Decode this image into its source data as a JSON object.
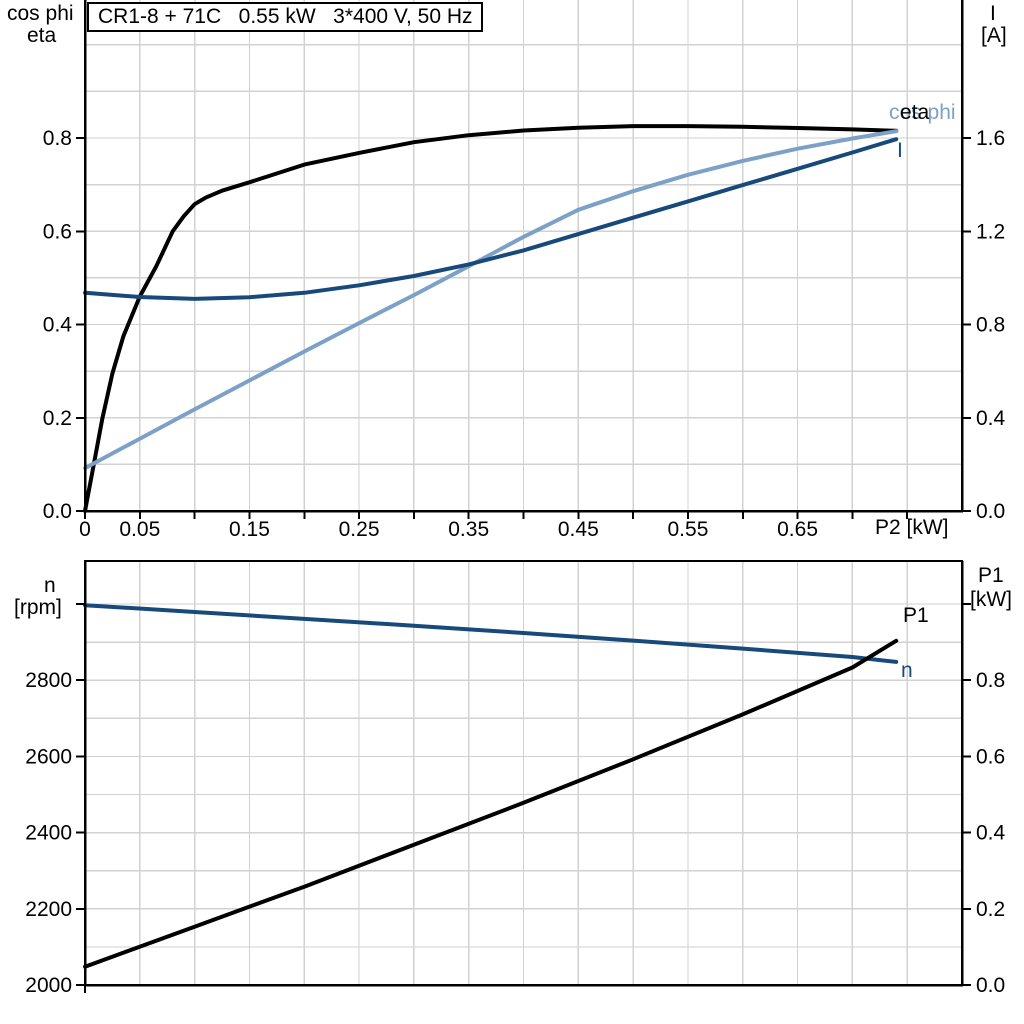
{
  "title_box": {
    "text": "CR1-8 + 71C   0.55 kW   3*400 V, 50 Hz"
  },
  "colors": {
    "black": "#000000",
    "dark_blue": "#17497b",
    "light_blue": "#7da0c7",
    "grid": "#d2d2d2",
    "background": "#ffffff"
  },
  "axis_titles": {
    "top_left_line1": "cos phi",
    "top_left_line2": "eta",
    "top_right_line1": "I",
    "top_right_line2": "[A]",
    "bottom_left_line1": "n",
    "bottom_left_line2": "[rpm]",
    "bottom_right_line1": "P1",
    "bottom_right_line2": "[kW]",
    "x_axis": "P2 [kW]"
  },
  "series_labels": {
    "eta": "eta",
    "cos_phi": "cos phi",
    "current": "I",
    "p1": "P1",
    "speed": "n"
  },
  "chart_data": [
    {
      "type": "line",
      "id": "motor-electrical",
      "title": "CR1-8 + 71C   0.55 kW   3*400 V, 50 Hz",
      "xlabel": "P2 [kW]",
      "ylabel_left": "cos phi / eta",
      "ylabel_right": "I [A]",
      "xlim": [
        0,
        0.8
      ],
      "ylim_left": [
        0,
        1.096
      ],
      "ylim_right": [
        0,
        2.192
      ],
      "grid_on": true,
      "vgrid": [
        0.05,
        0.1,
        0.15,
        0.2,
        0.25,
        0.3,
        0.35,
        0.4,
        0.45,
        0.5,
        0.55,
        0.6,
        0.65,
        0.7,
        0.75
      ],
      "hgrid_left": [
        0.1,
        0.2,
        0.3,
        0.4,
        0.5,
        0.6,
        0.7,
        0.8,
        0.9,
        1.0
      ],
      "x_ticks": [
        0,
        0.05,
        0.1,
        0.15,
        0.2,
        0.25,
        0.3,
        0.35,
        0.4,
        0.45,
        0.5,
        0.55,
        0.6,
        0.65,
        0.7,
        0.75
      ],
      "x_tick_labels": [
        {
          "v": 0,
          "t": "0"
        },
        {
          "v": 0.05,
          "t": "0.05"
        },
        {
          "v": 0.15,
          "t": "0.15"
        },
        {
          "v": 0.25,
          "t": "0.25"
        },
        {
          "v": 0.35,
          "t": "0.35"
        },
        {
          "v": 0.45,
          "t": "0.45"
        },
        {
          "v": 0.55,
          "t": "0.55"
        },
        {
          "v": 0.65,
          "t": "0.65"
        }
      ],
      "left_ticks": [
        {
          "v": 0,
          "t": "0.0"
        },
        {
          "v": 0.2,
          "t": "0.2"
        },
        {
          "v": 0.4,
          "t": "0.4"
        },
        {
          "v": 0.6,
          "t": "0.6"
        },
        {
          "v": 0.8,
          "t": "0.8"
        }
      ],
      "right_ticks": [
        {
          "v": 0,
          "t": "0.0"
        },
        {
          "v": 0.4,
          "t": "0.4"
        },
        {
          "v": 0.8,
          "t": "0.8"
        },
        {
          "v": 1.2,
          "t": "1.2"
        },
        {
          "v": 1.6,
          "t": "1.6"
        }
      ],
      "series": [
        {
          "name": "eta",
          "axis": "left",
          "color": "black",
          "points": [
            [
              0,
              0
            ],
            [
              0.008,
              0.1
            ],
            [
              0.016,
              0.2
            ],
            [
              0.025,
              0.295
            ],
            [
              0.035,
              0.375
            ],
            [
              0.05,
              0.46
            ],
            [
              0.065,
              0.525
            ],
            [
              0.08,
              0.6
            ],
            [
              0.09,
              0.632
            ],
            [
              0.1,
              0.658
            ],
            [
              0.11,
              0.672
            ],
            [
              0.125,
              0.687
            ],
            [
              0.15,
              0.705
            ],
            [
              0.2,
              0.743
            ],
            [
              0.25,
              0.768
            ],
            [
              0.3,
              0.791
            ],
            [
              0.35,
              0.806
            ],
            [
              0.4,
              0.816
            ],
            [
              0.45,
              0.822
            ],
            [
              0.5,
              0.8255
            ],
            [
              0.55,
              0.8255
            ],
            [
              0.6,
              0.824
            ],
            [
              0.65,
              0.8215
            ],
            [
              0.7,
              0.8185
            ],
            [
              0.74,
              0.8155
            ]
          ]
        },
        {
          "name": "cos phi",
          "axis": "left",
          "color": "light_blue",
          "points": [
            [
              0,
              0.092
            ],
            [
              0.05,
              0.155
            ],
            [
              0.1,
              0.218
            ],
            [
              0.15,
              0.28
            ],
            [
              0.2,
              0.342
            ],
            [
              0.25,
              0.403
            ],
            [
              0.3,
              0.463
            ],
            [
              0.35,
              0.525
            ],
            [
              0.4,
              0.588
            ],
            [
              0.45,
              0.646
            ],
            [
              0.5,
              0.686
            ],
            [
              0.55,
              0.721
            ],
            [
              0.6,
              0.751
            ],
            [
              0.65,
              0.777
            ],
            [
              0.7,
              0.799
            ],
            [
              0.74,
              0.8145
            ]
          ]
        },
        {
          "name": "I",
          "axis": "right",
          "color": "dark_blue",
          "points": [
            [
              0,
              0.936
            ],
            [
              0.05,
              0.918
            ],
            [
              0.1,
              0.91
            ],
            [
              0.15,
              0.917
            ],
            [
              0.2,
              0.936
            ],
            [
              0.25,
              0.968
            ],
            [
              0.3,
              1.008
            ],
            [
              0.35,
              1.058
            ],
            [
              0.4,
              1.118
            ],
            [
              0.45,
              1.188
            ],
            [
              0.5,
              1.258
            ],
            [
              0.55,
              1.328
            ],
            [
              0.6,
              1.398
            ],
            [
              0.65,
              1.468
            ],
            [
              0.7,
              1.538
            ],
            [
              0.74,
              1.595
            ]
          ]
        }
      ]
    },
    {
      "type": "line",
      "id": "motor-mechanical",
      "title": "",
      "xlabel": "",
      "ylabel_left": "n [rpm]",
      "ylabel_right": "P1 [kW]",
      "xlim": [
        0,
        0.8
      ],
      "ylim_left": [
        2000,
        3112.9
      ],
      "ylim_right": [
        0,
        1.1123
      ],
      "grid_on": true,
      "vgrid": [
        0.05,
        0.1,
        0.15,
        0.2,
        0.25,
        0.3,
        0.35,
        0.4,
        0.45,
        0.5,
        0.55,
        0.6,
        0.65,
        0.7,
        0.75
      ],
      "hgrid_left": [
        2100,
        2200,
        2300,
        2400,
        2500,
        2600,
        2700,
        2800,
        2900,
        3000
      ],
      "x_ticks": [
        0
      ],
      "x_tick_labels": [],
      "left_ticks": [
        {
          "v": 2000,
          "t": "2000"
        },
        {
          "v": 2200,
          "t": "2200"
        },
        {
          "v": 2400,
          "t": "2400"
        },
        {
          "v": 2600,
          "t": "2600"
        },
        {
          "v": 2800,
          "t": "2800"
        },
        {
          "v": 3000,
          "t": ""
        }
      ],
      "right_ticks": [
        {
          "v": 0,
          "t": "0.0"
        },
        {
          "v": 0.2,
          "t": "0.2"
        },
        {
          "v": 0.4,
          "t": "0.4"
        },
        {
          "v": 0.6,
          "t": "0.6"
        },
        {
          "v": 0.8,
          "t": "0.8"
        },
        {
          "v": 1.0,
          "t": ""
        }
      ],
      "series": [
        {
          "name": "n",
          "axis": "left",
          "color": "dark_blue",
          "points": [
            [
              0,
              2997
            ],
            [
              0.1,
              2979
            ],
            [
              0.2,
              2961
            ],
            [
              0.3,
              2943
            ],
            [
              0.4,
              2924
            ],
            [
              0.5,
              2904
            ],
            [
              0.6,
              2883
            ],
            [
              0.7,
              2861
            ],
            [
              0.74,
              2848
            ]
          ]
        },
        {
          "name": "P1",
          "axis": "right",
          "color": "black",
          "points": [
            [
              0,
              0.048
            ],
            [
              0.1,
              0.153
            ],
            [
              0.2,
              0.258
            ],
            [
              0.3,
              0.368
            ],
            [
              0.4,
              0.478
            ],
            [
              0.5,
              0.592
            ],
            [
              0.6,
              0.71
            ],
            [
              0.7,
              0.833
            ],
            [
              0.74,
              0.903
            ]
          ]
        }
      ]
    }
  ]
}
